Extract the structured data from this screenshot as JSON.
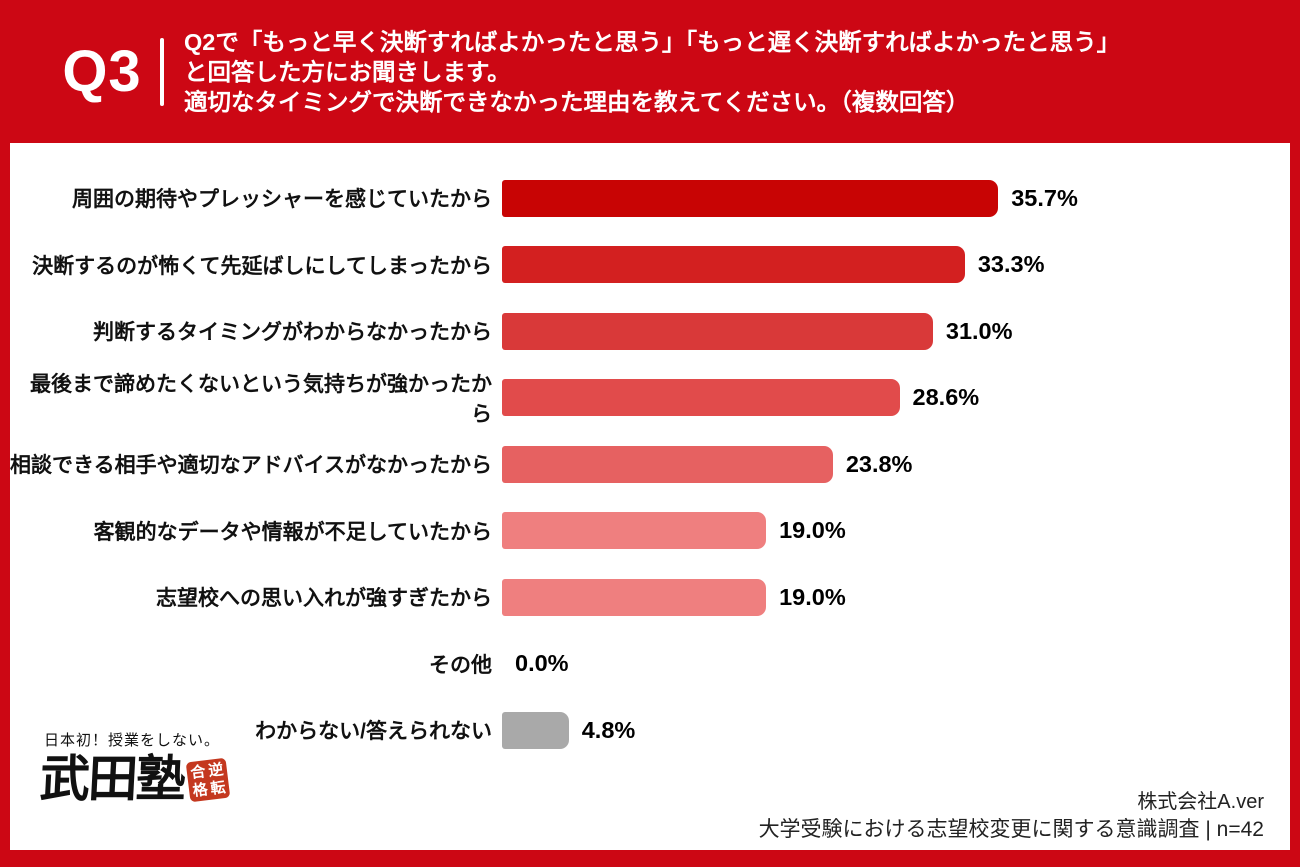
{
  "header": {
    "question_number": "Q3",
    "question_lines": [
      "Q2で「もっと早く決断すればよかったと思う」「もっと遅く決断すればよかったと思う」",
      "と回答した方にお聞きします。",
      "適切なタイミングで決断できなかった理由を教えてください。（複数回答）"
    ]
  },
  "chart_data": {
    "type": "bar",
    "orientation": "horizontal",
    "title": "適切なタイミングで決断できなかった理由（複数回答）",
    "categories": [
      "周囲の期待やプレッシャーを感じていたから",
      "決断するのが怖くて先延ばしにしてしまったから",
      "判断するタイミングがわからなかったから",
      "最後まで諦めたくないという気持ちが強かったから",
      "相談できる相手や適切なアドバイスがなかったから",
      "客観的なデータや情報が不足していたから",
      "志望校への思い入れが強すぎたから",
      "その他",
      "わからない/答えられない"
    ],
    "values": [
      35.7,
      33.3,
      31.0,
      28.6,
      23.8,
      19.0,
      19.0,
      0.0,
      4.8
    ],
    "value_labels": [
      "35.7%",
      "33.3%",
      "31.0%",
      "28.6%",
      "23.8%",
      "19.0%",
      "19.0%",
      "0.0%",
      "4.8%"
    ],
    "bar_colors": [
      "#C80404",
      "#D32020",
      "#D93939",
      "#E14B4B",
      "#E66161",
      "#EF7F7F",
      "#EF7F7F",
      "#EF7F7F",
      "#A9A9A9"
    ],
    "xlim": [
      0,
      40
    ],
    "grid": false,
    "legend": "none"
  },
  "logo": {
    "tagline": "日本初！授業をしない。",
    "name": "武田塾",
    "seal_text": "逆転合格",
    "seal_chars": [
      "合",
      "逆",
      "格",
      "転"
    ]
  },
  "footer": {
    "company": "株式会社A.ver",
    "survey": "大学受験における志望校変更に関する意識調査 | n=42"
  },
  "colors": {
    "background_red": "#CC0714",
    "panel_white": "#FFFFFF",
    "text_black": "#111111",
    "gray_bar": "#A9A9A9",
    "seal_red": "#C4381F"
  }
}
